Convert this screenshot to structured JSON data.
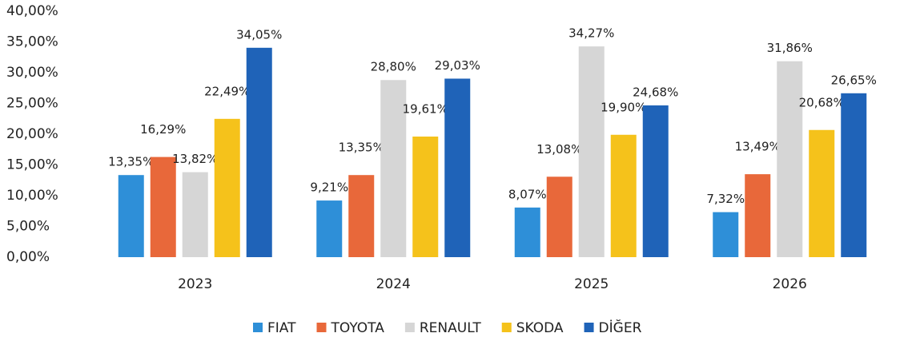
{
  "chart_data": {
    "type": "bar",
    "categories": [
      "2023",
      "2024",
      "2025",
      "2026"
    ],
    "series": [
      {
        "name": "FIAT",
        "color": "#2e8fd8",
        "values": [
          13.35,
          9.21,
          8.07,
          7.32
        ],
        "value_labels": [
          "13,35%",
          "9,21%",
          "8,07%",
          "7,32%"
        ]
      },
      {
        "name": "TOYOTA",
        "color": "#e8683a",
        "values": [
          16.29,
          13.35,
          13.08,
          13.49
        ],
        "value_labels": [
          "16,29%",
          "13,35%",
          "13,08%",
          "13,49%"
        ]
      },
      {
        "name": "RENAULT",
        "color": "#d6d6d6",
        "values": [
          13.82,
          28.8,
          34.27,
          31.86
        ],
        "value_labels": [
          "13,82%",
          "28,80%",
          "34,27%",
          "31,86%"
        ]
      },
      {
        "name": "SKODA",
        "color": "#f5c21b",
        "values": [
          22.49,
          19.61,
          19.9,
          20.68
        ],
        "value_labels": [
          "22,49%",
          "19,61%",
          "19,90%",
          "20,68%"
        ]
      },
      {
        "name": "DİĞER",
        "color": "#1f63b8",
        "values": [
          34.05,
          29.03,
          24.68,
          26.65
        ],
        "value_labels": [
          "34,05%",
          "29,03%",
          "24,68%",
          "26,65%"
        ]
      }
    ],
    "ylim": [
      0,
      40
    ],
    "yticks": [
      {
        "value": 0,
        "label": "0,00%"
      },
      {
        "value": 5,
        "label": "5,00%"
      },
      {
        "value": 10,
        "label": "10,00%"
      },
      {
        "value": 15,
        "label": "15,00%"
      },
      {
        "value": 20,
        "label": "20,00%"
      },
      {
        "value": 25,
        "label": "25,00%"
      },
      {
        "value": 30,
        "label": "30,00%"
      },
      {
        "value": 35,
        "label": "35,00%"
      },
      {
        "value": 40,
        "label": "40,00%"
      }
    ],
    "grid": false,
    "legend": "bottom"
  }
}
